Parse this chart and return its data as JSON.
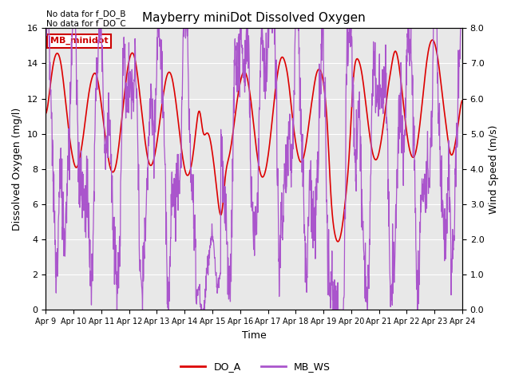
{
  "title": "Mayberry miniDot Dissolved Oxygen",
  "xlabel": "Time",
  "ylabel_left": "Dissolved Oxygen (mg/l)",
  "ylabel_right": "Wind Speed (m/s)",
  "annotation1": "No data for f_DO_B",
  "annotation2": "No data for f_DO_C",
  "legend_box_label": "MB_minidot",
  "legend_entries": [
    "DO_A",
    "MB_WS"
  ],
  "do_color": "#dd0000",
  "ws_color": "#aa55cc",
  "ylim_left": [
    0,
    16
  ],
  "ylim_right": [
    0.0,
    8.0
  ],
  "x_ticks": [
    "Apr 9",
    "Apr 10",
    "Apr 11",
    "Apr 12",
    "Apr 13",
    "Apr 14",
    "Apr 15",
    "Apr 16",
    "Apr 17",
    "Apr 18",
    "Apr 19",
    "Apr 20",
    "Apr 21",
    "Apr 22",
    "Apr 23",
    "Apr 24"
  ],
  "bg_color": "#e8e8e8",
  "grid_color": "#ffffff",
  "yticks_left": [
    0,
    2,
    4,
    6,
    8,
    10,
    12,
    14,
    16
  ],
  "yticks_right": [
    0.0,
    1.0,
    2.0,
    3.0,
    4.0,
    5.0,
    6.0,
    7.0,
    8.0
  ]
}
